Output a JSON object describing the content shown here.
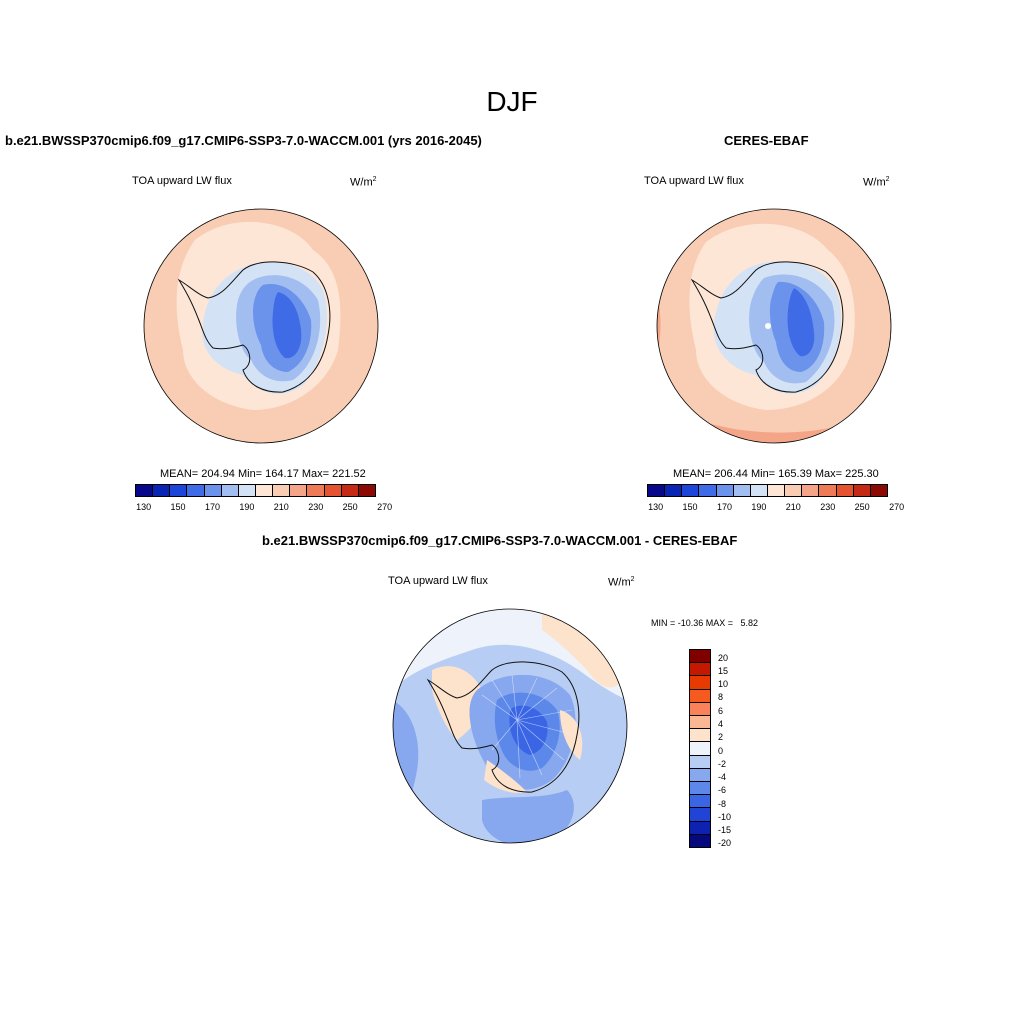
{
  "season_title": "DJF",
  "panel_left": {
    "title": "b.e21.BWSSP370cmip6.f09_g17.CMIP6-SSP3-7.0-WACCM.001 (yrs 2016-2045)",
    "variable": "TOA upward LW flux",
    "units_base": "W/m",
    "units_exp": "2",
    "stats": "MEAN= 204.94   Min= 164.17   Max= 221.52"
  },
  "panel_right": {
    "title": "CERES-EBAF",
    "variable": "TOA upward LW flux",
    "units_base": "W/m",
    "units_exp": "2",
    "stats": "MEAN= 206.44   Min= 165.39   Max= 225.30"
  },
  "panel_diff": {
    "title": "b.e21.BWSSP370cmip6.f09_g17.CMIP6-SSP3-7.0-WACCM.001 - CERES-EBAF",
    "variable": "TOA upward LW flux",
    "units_base": "W/m",
    "units_exp": "2",
    "stats": "MIN = -10.36 MAX =   5.82"
  },
  "abs_colorbar": {
    "colors": [
      "#08088a",
      "#0a24b4",
      "#1b46d8",
      "#3f6ce6",
      "#6b93ec",
      "#a2bef0",
      "#d4e2f6",
      "#fde6d6",
      "#f9ccb4",
      "#f4a588",
      "#ee7a58",
      "#e55330",
      "#c42a14",
      "#8c0a04"
    ],
    "tick_labels": [
      "130",
      "150",
      "170",
      "190",
      "210",
      "230",
      "250",
      "270"
    ]
  },
  "diff_colorbar": {
    "colors": [
      "#800000",
      "#c41800",
      "#e63a00",
      "#f55a1e",
      "#f9825a",
      "#fbb694",
      "#fde2cc",
      "#eef2fb",
      "#b8cdf3",
      "#87a8ee",
      "#5c88ea",
      "#3a66e6",
      "#1f44d6",
      "#0d22b0",
      "#06087e"
    ],
    "labels": [
      "20",
      "15",
      "10",
      "8",
      "6",
      "4",
      "2",
      "0",
      "-2",
      "-4",
      "-6",
      "-8",
      "-10",
      "-15",
      "-20"
    ]
  }
}
